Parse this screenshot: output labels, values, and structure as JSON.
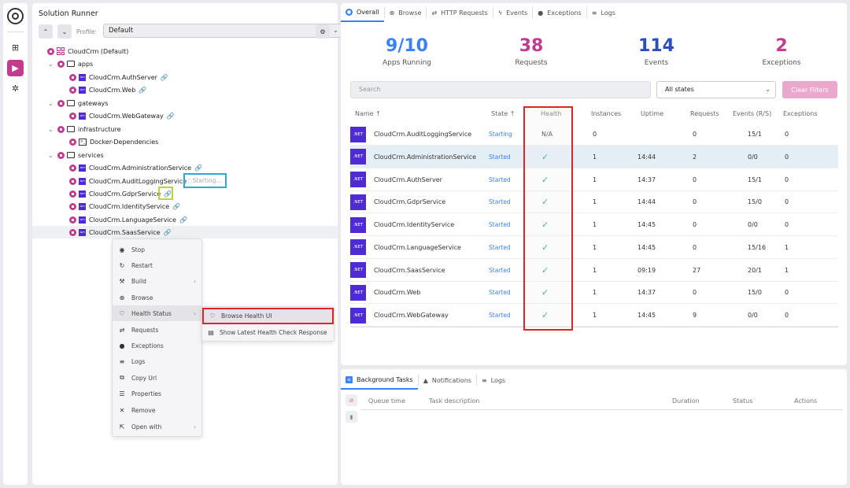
{
  "rail": {
    "items": [
      "components",
      "run",
      "settings"
    ]
  },
  "left": {
    "title": "Solution Runner",
    "profile_label": "Profile:",
    "profile_value": "Default",
    "tree": {
      "root": "CloudCrm (Default)",
      "apps": "apps",
      "apps_items": [
        "CloudCrm.AuthServer",
        "CloudCrm.Web"
      ],
      "gateways": "gateways",
      "gateways_items": [
        "CloudCrm.WebGateway"
      ],
      "infrastructure": "infrastructure",
      "infra_items": [
        "Docker-Dependencies"
      ],
      "services": "services",
      "services_items": [
        "CloudCrm.AdministrationService",
        "CloudCrm.AuditLoggingService",
        "CloudCrm.GdprService",
        "CloudCrm.IdentityService",
        "CloudCrm.LanguageService",
        "CloudCrm.SaasService"
      ],
      "starting_text": "Starting..."
    },
    "context_menu": [
      "Stop",
      "Restart",
      "Build",
      "Browse",
      "Health Status",
      "Requests",
      "Exceptions",
      "Logs",
      "Copy Url",
      "Properties",
      "Remove",
      "Open with"
    ],
    "submenu": [
      "Browse Health UI",
      "Show Latest Health Check Response"
    ]
  },
  "top": {
    "tabs": [
      "Overall",
      "Browse",
      "HTTP Requests",
      "Events",
      "Exceptions",
      "Logs"
    ],
    "stats": [
      {
        "value": "9/10",
        "label": "Apps Running",
        "color": "#3b82f6"
      },
      {
        "value": "38",
        "label": "Requests",
        "color": "#c13b8e"
      },
      {
        "value": "114",
        "label": "Events",
        "color": "#2b4fb8"
      },
      {
        "value": "2",
        "label": "Exceptions",
        "color": "#c13b8e"
      }
    ],
    "search_placeholder": "Search",
    "states_value": "All states",
    "clear_label": "Clear Filters",
    "columns": [
      "Name ↑",
      "State ↑",
      "Health",
      "Instances",
      "Uptime",
      "Requests",
      "Events (R/S)",
      "Exceptions"
    ],
    "net_label": ".NET",
    "rows": [
      {
        "name": "CloudCrm.AuditLoggingService",
        "state": "Starting",
        "health": "N/A",
        "instances": "0",
        "uptime": "",
        "requests": "0",
        "events": "15/1",
        "exceptions": "0"
      },
      {
        "name": "CloudCrm.AdministrationService",
        "state": "Started",
        "health": "✓",
        "instances": "1",
        "uptime": "14:44",
        "requests": "2",
        "events": "0/0",
        "exceptions": "0"
      },
      {
        "name": "CloudCrm.AuthServer",
        "state": "Started",
        "health": "✓",
        "instances": "1",
        "uptime": "14:37",
        "requests": "0",
        "events": "15/1",
        "exceptions": "0"
      },
      {
        "name": "CloudCrm.GdprService",
        "state": "Started",
        "health": "✓",
        "instances": "1",
        "uptime": "14:44",
        "requests": "0",
        "events": "15/0",
        "exceptions": "0"
      },
      {
        "name": "CloudCrm.IdentityService",
        "state": "Started",
        "health": "✓",
        "instances": "1",
        "uptime": "14:45",
        "requests": "0",
        "events": "0/0",
        "exceptions": "0"
      },
      {
        "name": "CloudCrm.LanguageService",
        "state": "Started",
        "health": "✓",
        "instances": "1",
        "uptime": "14:45",
        "requests": "0",
        "events": "15/16",
        "exceptions": "1"
      },
      {
        "name": "CloudCrm.SaasService",
        "state": "Started",
        "health": "✓",
        "instances": "1",
        "uptime": "09:19",
        "requests": "27",
        "events": "20/1",
        "exceptions": "1"
      },
      {
        "name": "CloudCrm.Web",
        "state": "Started",
        "health": "✓",
        "instances": "1",
        "uptime": "14:37",
        "requests": "0",
        "events": "15/0",
        "exceptions": "0"
      },
      {
        "name": "CloudCrm.WebGateway",
        "state": "Started",
        "health": "✓",
        "instances": "1",
        "uptime": "14:45",
        "requests": "9",
        "events": "0/0",
        "exceptions": "0"
      }
    ]
  },
  "bottom": {
    "tabs": [
      "Background Tasks",
      "Notifications",
      "Logs"
    ],
    "columns": [
      "Queue time",
      "Task description",
      "Duration",
      "Status",
      "Actions"
    ]
  }
}
